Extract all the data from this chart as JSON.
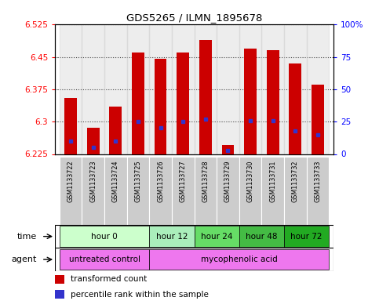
{
  "title": "GDS5265 / ILMN_1895678",
  "samples": [
    "GSM1133722",
    "GSM1133723",
    "GSM1133724",
    "GSM1133725",
    "GSM1133726",
    "GSM1133727",
    "GSM1133728",
    "GSM1133729",
    "GSM1133730",
    "GSM1133731",
    "GSM1133732",
    "GSM1133733"
  ],
  "transformed_counts": [
    6.355,
    6.285,
    6.335,
    6.46,
    6.445,
    6.46,
    6.49,
    6.245,
    6.47,
    6.465,
    6.435,
    6.385
  ],
  "percentile_ranks": [
    10,
    5,
    10,
    25,
    20,
    25,
    27,
    3,
    26,
    26,
    18,
    15
  ],
  "ymin": 6.225,
  "ymax": 6.525,
  "yticks": [
    6.225,
    6.3,
    6.375,
    6.45,
    6.525
  ],
  "right_yticks": [
    0,
    25,
    50,
    75,
    100
  ],
  "bar_color": "#cc0000",
  "percentile_color": "#3333cc",
  "time_groups": [
    {
      "label": "hour 0",
      "start": 0,
      "end": 3,
      "color": "#ccffcc"
    },
    {
      "label": "hour 12",
      "start": 4,
      "end": 5,
      "color": "#aaeebb"
    },
    {
      "label": "hour 24",
      "start": 6,
      "end": 7,
      "color": "#66dd66"
    },
    {
      "label": "hour 48",
      "start": 8,
      "end": 9,
      "color": "#44bb44"
    },
    {
      "label": "hour 72",
      "start": 10,
      "end": 11,
      "color": "#22aa22"
    }
  ],
  "agent_groups": [
    {
      "label": "untreated control",
      "start": 0,
      "end": 3,
      "color": "#ee77ee"
    },
    {
      "label": "mycophenolic acid",
      "start": 4,
      "end": 11,
      "color": "#ee77ee"
    }
  ],
  "bar_width": 0.55,
  "bg_color": "#ffffff",
  "sample_bg_color": "#cccccc",
  "plot_bg_color": "#ffffff"
}
